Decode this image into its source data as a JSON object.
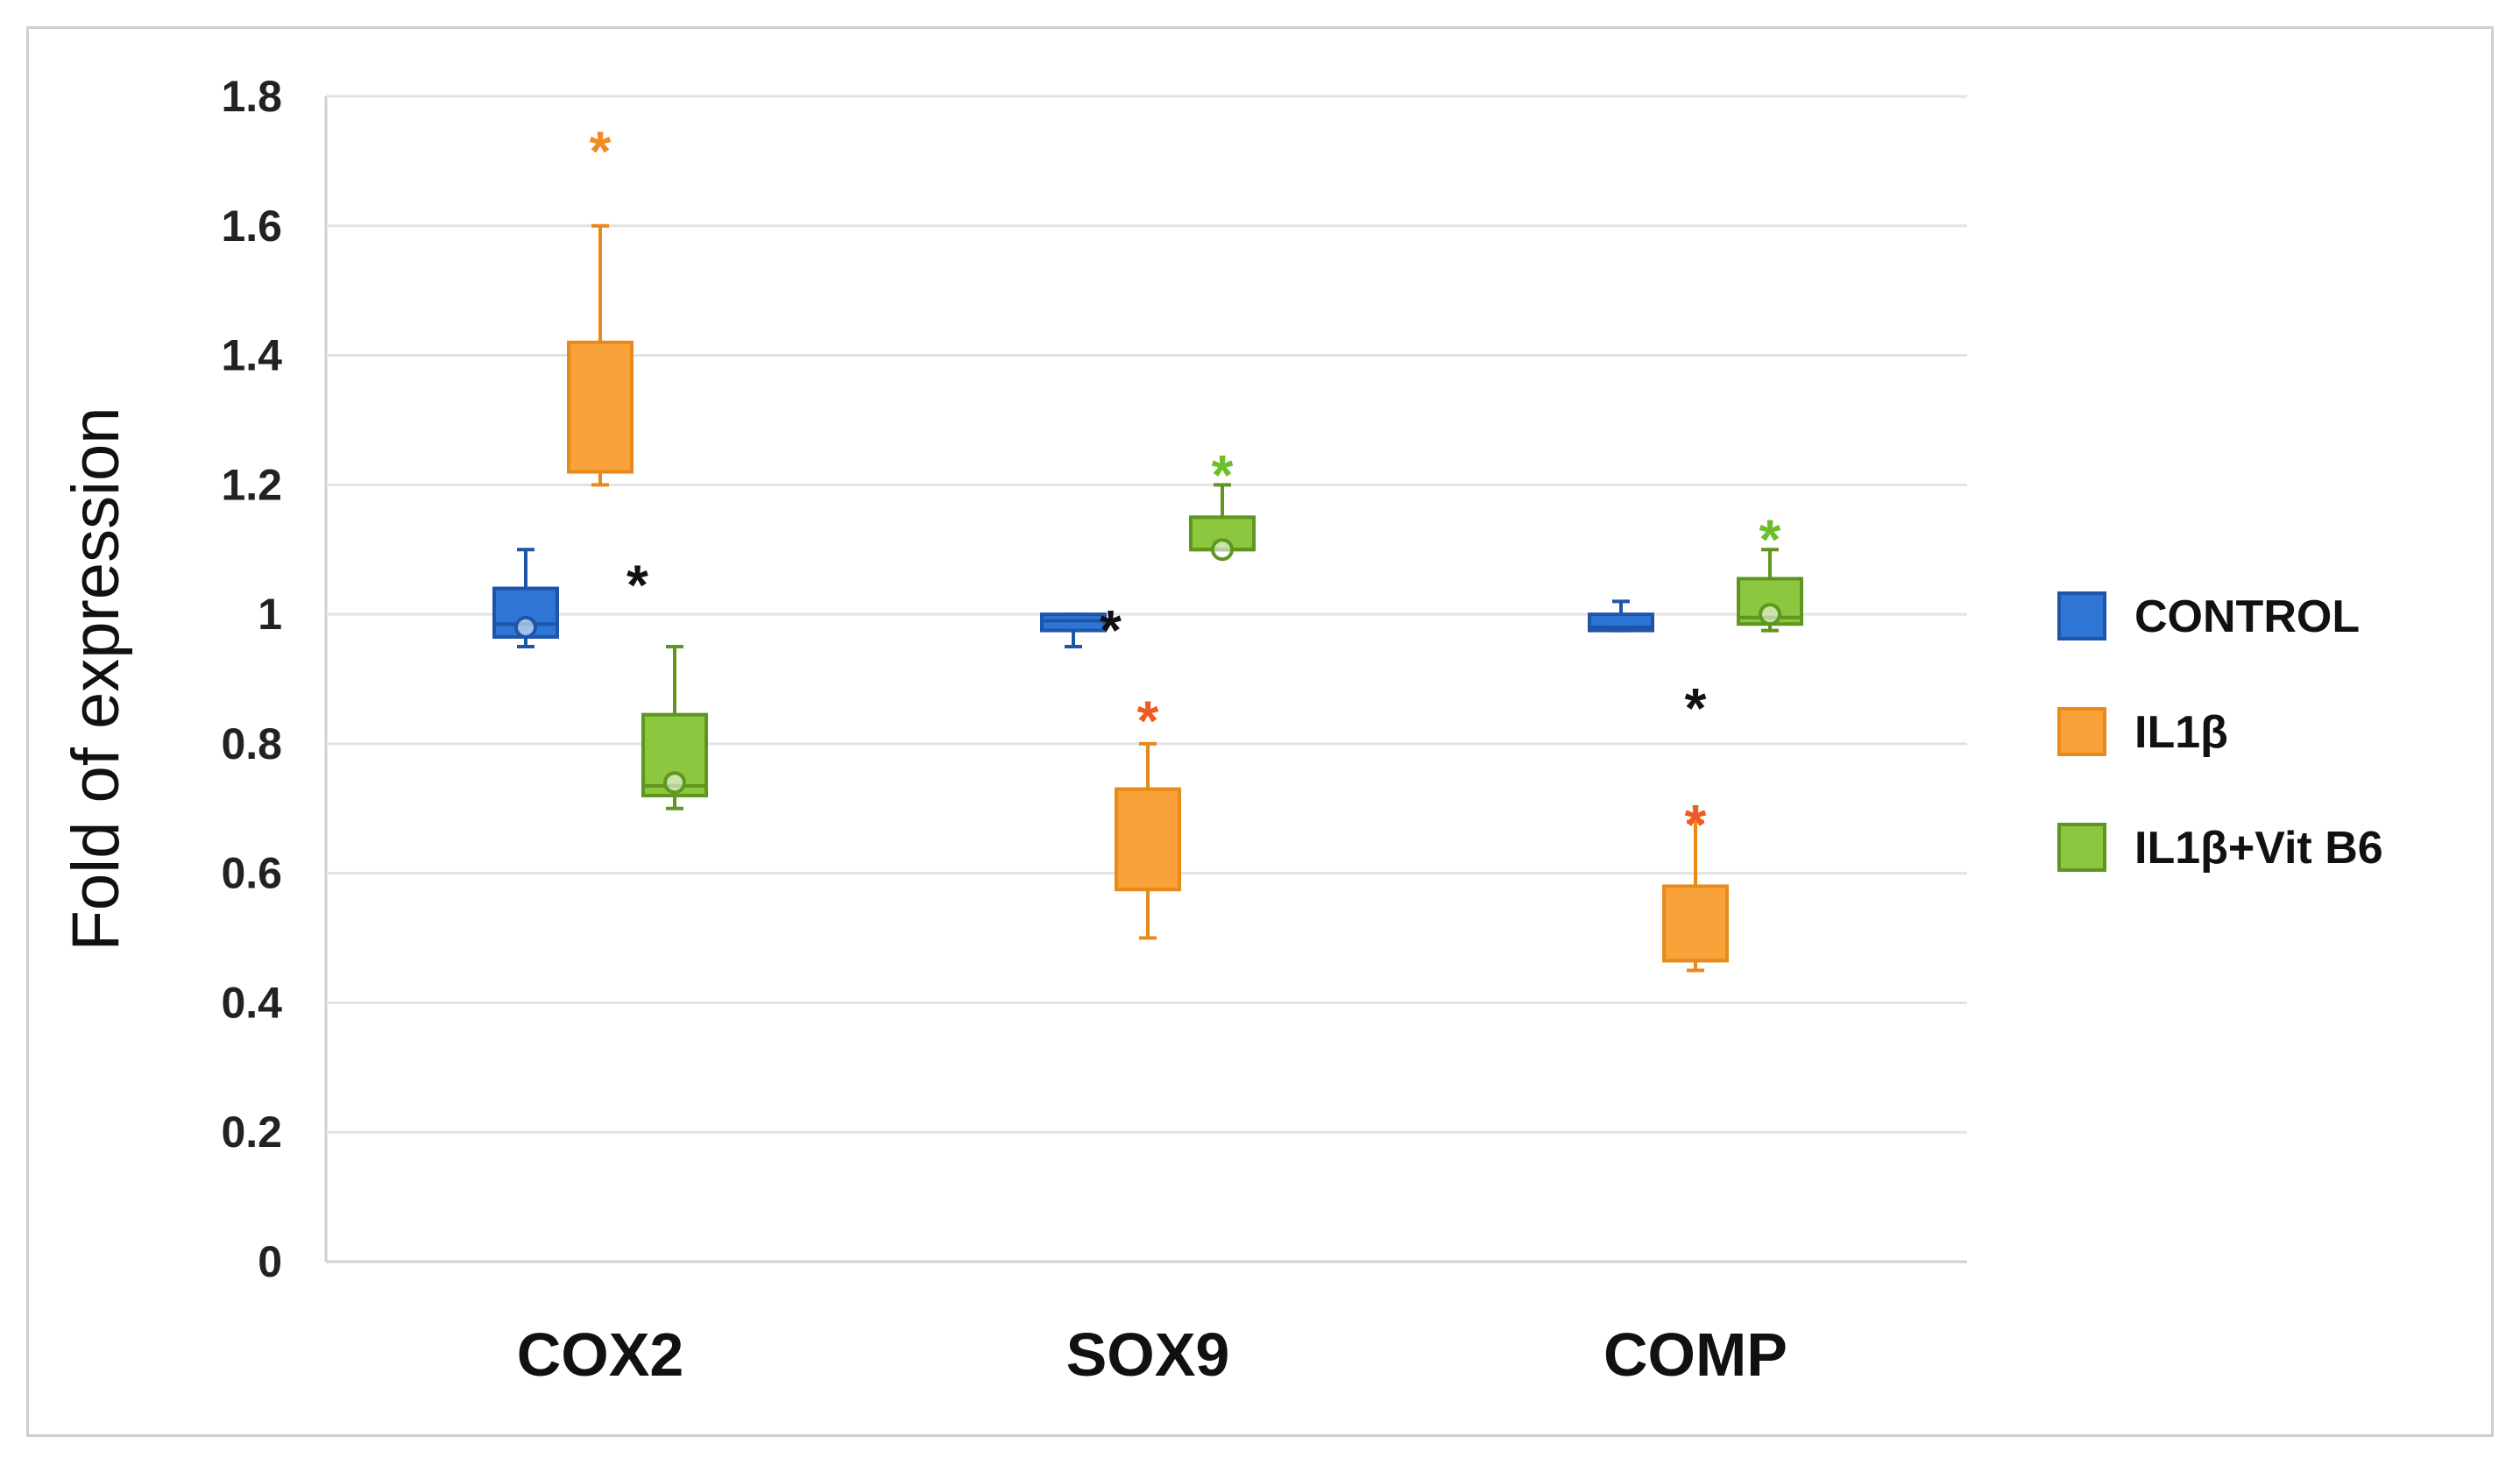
{
  "chart_data": {
    "type": "box",
    "ylabel": "Fold of expression",
    "ylim": [
      0,
      1.8
    ],
    "yticks": [
      0,
      0.2,
      0.4,
      0.6,
      0.8,
      1,
      1.2,
      1.4,
      1.6,
      1.8
    ],
    "ytick_labels": [
      "0",
      "0.2",
      "0.4",
      "0.6",
      "0.8",
      "1",
      "1.2",
      "1.4",
      "1.6",
      "1.8"
    ],
    "grid": true,
    "legend_position": "right",
    "categories": [
      "COX2",
      "SOX9",
      "COMP"
    ],
    "series": [
      {
        "name": "CONTROL",
        "color": "#2e75d6",
        "edge": "#1f55a8",
        "boxes": [
          {
            "min": 0.95,
            "q1": 0.965,
            "median": 0.985,
            "q3": 1.04,
            "max": 1.1,
            "mean": 0.98
          },
          {
            "min": 0.95,
            "q1": 0.975,
            "median": 0.99,
            "q3": 1.0,
            "max": 1.0,
            "mean": null
          },
          {
            "min": 0.975,
            "q1": 0.975,
            "median": 0.98,
            "q3": 1.0,
            "max": 1.02,
            "mean": null
          }
        ]
      },
      {
        "name": "IL1β",
        "color": "#f9a23a",
        "edge": "#e8891b",
        "boxes": [
          {
            "min": 1.2,
            "q1": 1.22,
            "median": 1.22,
            "q3": 1.42,
            "max": 1.6,
            "mean": null
          },
          {
            "min": 0.5,
            "q1": 0.575,
            "median": 0.575,
            "q3": 0.73,
            "max": 0.8,
            "mean": null
          },
          {
            "min": 0.45,
            "q1": 0.465,
            "median": 0.465,
            "q3": 0.58,
            "max": 0.68,
            "mean": null
          }
        ]
      },
      {
        "name": "IL1β+Vit B6",
        "color": "#8dc63f",
        "edge": "#5e9620",
        "boxes": [
          {
            "min": 0.7,
            "q1": 0.72,
            "median": 0.735,
            "q3": 0.845,
            "max": 0.95,
            "mean": 0.74
          },
          {
            "min": 1.1,
            "q1": 1.1,
            "median": 1.1,
            "q3": 1.15,
            "max": 1.2,
            "mean": 1.1
          },
          {
            "min": 0.975,
            "q1": 0.985,
            "median": 0.995,
            "q3": 1.055,
            "max": 1.1,
            "mean": 1.0
          }
        ]
      }
    ],
    "annotations": [
      {
        "text": "*",
        "category": 0,
        "series": 1,
        "y": 1.74,
        "color": "#f08a24"
      },
      {
        "text": "*",
        "category": 0,
        "series": 1.5,
        "y": 1.07,
        "color": "#111111"
      },
      {
        "text": "*",
        "category": 1,
        "series": 0.5,
        "y": 1.0,
        "color": "#111111"
      },
      {
        "text": "*",
        "category": 1,
        "series": 1,
        "y": 0.86,
        "color": "#f05a24"
      },
      {
        "text": "*",
        "category": 1,
        "series": 2,
        "y": 1.24,
        "color": "#6dbf2a"
      },
      {
        "text": "*",
        "category": 2,
        "series": 1,
        "y": 0.88,
        "color": "#111111"
      },
      {
        "text": "*",
        "category": 2,
        "series": 1,
        "y": 0.7,
        "color": "#f05a24"
      },
      {
        "text": "*",
        "category": 2,
        "series": 2,
        "y": 1.14,
        "color": "#6dbf2a"
      }
    ]
  }
}
